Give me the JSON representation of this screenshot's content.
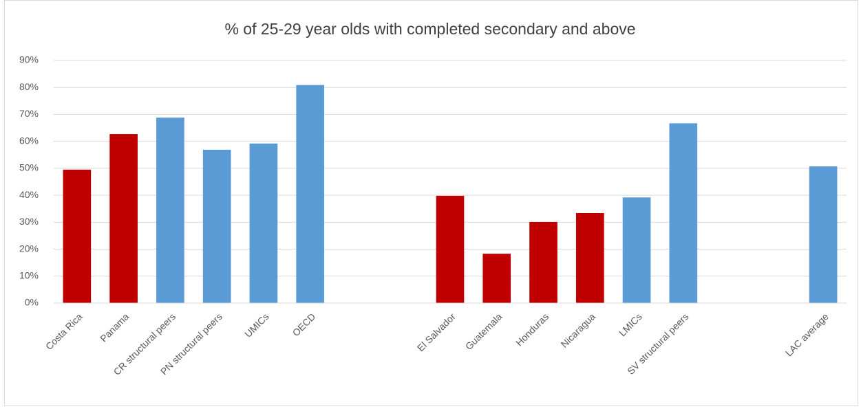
{
  "chart_data": {
    "type": "bar",
    "title": "% of 25-29 year olds with completed secondary and above",
    "categories": [
      "Costa Rica",
      "Panama",
      "CR structural peers",
      "PN structural peers",
      "UMICs",
      "OECD",
      null,
      null,
      "El Salvador",
      "Guatemala",
      "Honduras",
      "Nicaragua",
      "LMICs",
      "SV structural peers",
      null,
      null,
      "LAC average"
    ],
    "values": [
      49.5,
      62.7,
      68.8,
      56.9,
      59.2,
      80.9,
      null,
      null,
      39.8,
      18.3,
      30.1,
      33.4,
      39.2,
      66.7,
      null,
      null,
      50.7
    ],
    "colors": [
      "#c00000",
      "#c00000",
      "#5b9bd5",
      "#5b9bd5",
      "#5b9bd5",
      "#5b9bd5",
      null,
      null,
      "#c00000",
      "#c00000",
      "#c00000",
      "#c00000",
      "#5b9bd5",
      "#5b9bd5",
      null,
      null,
      "#5b9bd5"
    ],
    "ylim": [
      0,
      90
    ],
    "yticks": [
      {
        "value": 0,
        "label": "0%"
      },
      {
        "value": 10,
        "label": "10%"
      },
      {
        "value": 20,
        "label": "20%"
      },
      {
        "value": 30,
        "label": "30%"
      },
      {
        "value": 40,
        "label": "40%"
      },
      {
        "value": 50,
        "label": "50%"
      },
      {
        "value": 60,
        "label": "60%"
      },
      {
        "value": 70,
        "label": "70%"
      },
      {
        "value": 80,
        "label": "80%"
      },
      {
        "value": 90,
        "label": "90%"
      }
    ],
    "grid": true
  }
}
